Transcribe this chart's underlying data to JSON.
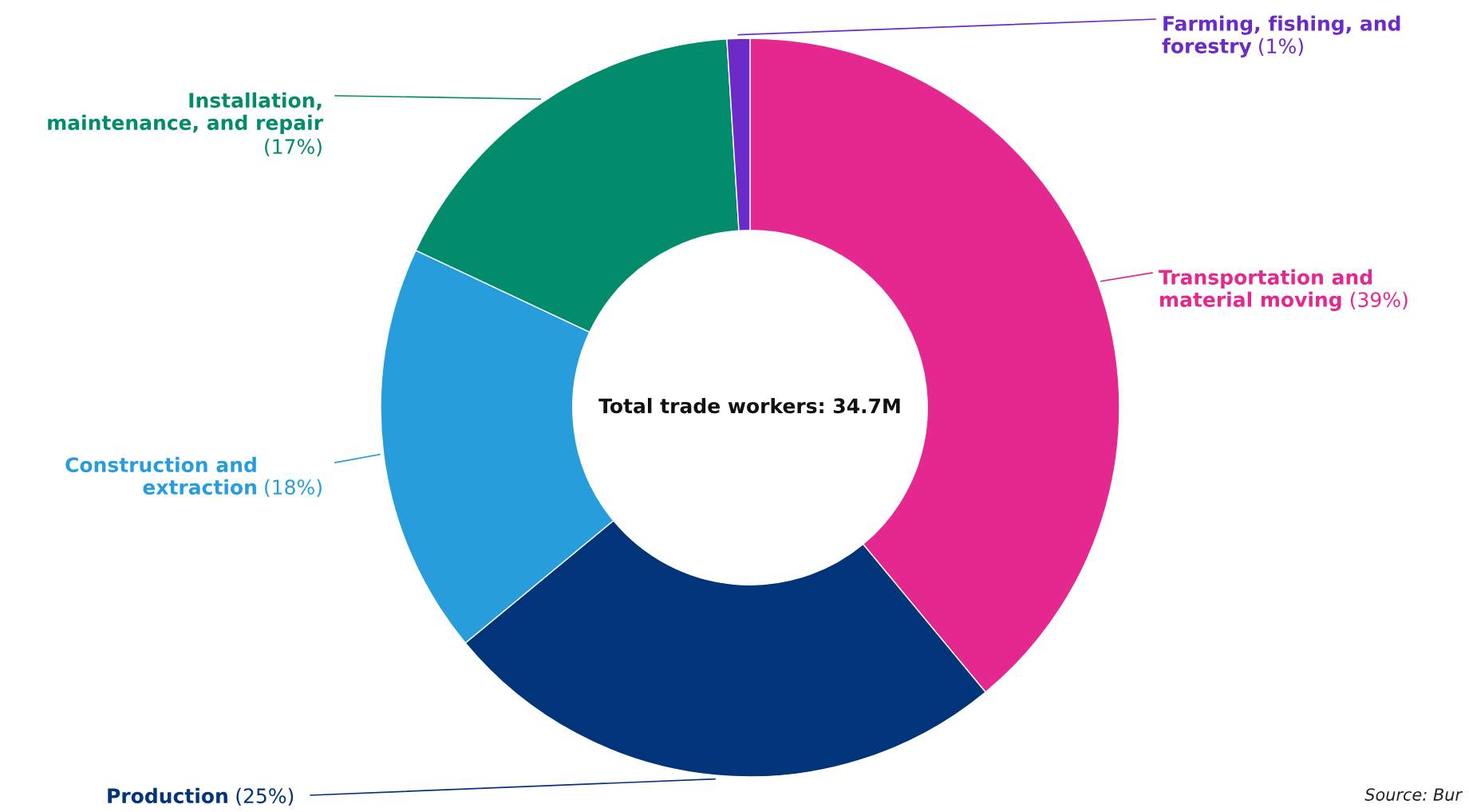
{
  "chart_data": {
    "type": "donut",
    "categories": [
      "Transportation and\nmaterial moving",
      "Production",
      "Construction and\nextraction",
      "Installation,\nmaintenance, and repair",
      "Farming, fishing, and\nforestry"
    ],
    "values": [
      39,
      25,
      18,
      17,
      1
    ],
    "value_labels": [
      "(39%)",
      "(25%)",
      "(18%)",
      "(17%)",
      "(1%)"
    ],
    "colors": [
      "#e5288f",
      "#023479",
      "#279ddb",
      "#038c6b",
      "#6c2bc9"
    ],
    "annotations": [
      "Total trade workers: 34.7M",
      "Source: Bur"
    ]
  }
}
